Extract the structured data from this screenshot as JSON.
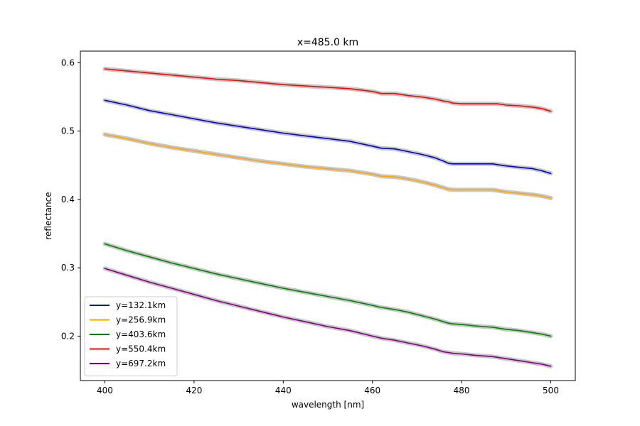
{
  "chart_data": {
    "type": "line",
    "title": "x=485.0 km",
    "xlabel": "wavelength [nm]",
    "ylabel": "reflectance",
    "xlim": [
      394.5,
      505.5
    ],
    "ylim": [
      0.135,
      0.617
    ],
    "xticks": [
      400,
      420,
      440,
      460,
      480,
      500
    ],
    "yticks": [
      0.2,
      0.3,
      0.4,
      0.5,
      0.6
    ],
    "xtick_labels": [
      "400",
      "420",
      "440",
      "460",
      "480",
      "500"
    ],
    "ytick_labels": [
      "0.2",
      "0.3",
      "0.4",
      "0.5",
      "0.6"
    ],
    "grid": false,
    "legend_position": "lower-left",
    "band_color": "#c8c8c8",
    "x": [
      400,
      405,
      410,
      415,
      420,
      425,
      430,
      435,
      440,
      445,
      450,
      455,
      460,
      462,
      465,
      468,
      471,
      474,
      476,
      477,
      478,
      480,
      483,
      485,
      487,
      488,
      490,
      493,
      496,
      498,
      500
    ],
    "series": [
      {
        "name": "y=132.1km",
        "color": "#0000cc",
        "values": [
          0.545,
          0.538,
          0.53,
          0.524,
          0.518,
          0.512,
          0.507,
          0.502,
          0.497,
          0.493,
          0.489,
          0.485,
          0.478,
          0.475,
          0.474,
          0.47,
          0.466,
          0.461,
          0.456,
          0.453,
          0.452,
          0.452,
          0.452,
          0.452,
          0.452,
          0.451,
          0.449,
          0.447,
          0.445,
          0.442,
          0.438
        ]
      },
      {
        "name": "y=256.9km",
        "color": "#ffa500",
        "values": [
          0.495,
          0.489,
          0.482,
          0.476,
          0.471,
          0.466,
          0.461,
          0.456,
          0.452,
          0.448,
          0.445,
          0.442,
          0.437,
          0.434,
          0.433,
          0.43,
          0.426,
          0.421,
          0.417,
          0.415,
          0.414,
          0.414,
          0.414,
          0.414,
          0.414,
          0.413,
          0.411,
          0.409,
          0.407,
          0.405,
          0.402
        ]
      },
      {
        "name": "y=403.6km",
        "color": "#008000",
        "values": [
          0.335,
          0.325,
          0.316,
          0.307,
          0.299,
          0.291,
          0.284,
          0.277,
          0.27,
          0.264,
          0.258,
          0.252,
          0.245,
          0.242,
          0.239,
          0.235,
          0.23,
          0.225,
          0.221,
          0.219,
          0.218,
          0.217,
          0.215,
          0.214,
          0.213,
          0.212,
          0.21,
          0.208,
          0.205,
          0.203,
          0.2
        ]
      },
      {
        "name": "y=550.4km",
        "color": "#ff0000",
        "values": [
          0.591,
          0.588,
          0.585,
          0.582,
          0.579,
          0.576,
          0.574,
          0.571,
          0.568,
          0.566,
          0.564,
          0.562,
          0.558,
          0.555,
          0.555,
          0.552,
          0.55,
          0.547,
          0.544,
          0.543,
          0.541,
          0.54,
          0.54,
          0.54,
          0.54,
          0.54,
          0.538,
          0.537,
          0.535,
          0.533,
          0.529
        ]
      },
      {
        "name": "y=697.2km",
        "color": "#800080",
        "values": [
          0.299,
          0.289,
          0.279,
          0.27,
          0.261,
          0.252,
          0.244,
          0.236,
          0.228,
          0.221,
          0.214,
          0.208,
          0.2,
          0.197,
          0.194,
          0.19,
          0.186,
          0.181,
          0.177,
          0.176,
          0.175,
          0.174,
          0.172,
          0.171,
          0.17,
          0.169,
          0.167,
          0.164,
          0.161,
          0.159,
          0.156
        ]
      }
    ]
  }
}
